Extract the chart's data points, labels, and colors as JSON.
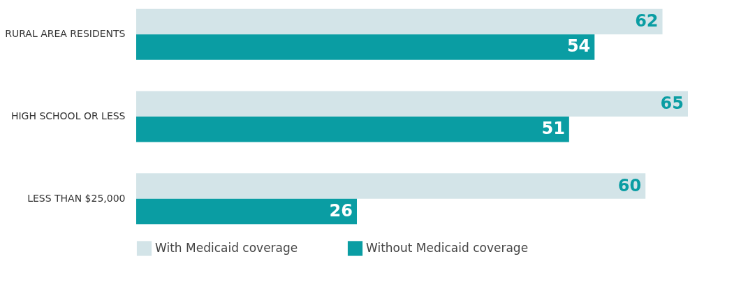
{
  "chart_data": {
    "type": "bar",
    "orientation": "horizontal",
    "categories": [
      "RURAL AREA RESIDENTS",
      "HIGH SCHOOL OR LESS",
      "LESS THAN $25,000"
    ],
    "series": [
      {
        "name": "With Medicaid coverage",
        "color": "#d3e4e8",
        "values": [
          62,
          65,
          60
        ]
      },
      {
        "name": "Without Medicaid coverage",
        "color": "#0a9da3",
        "values": [
          54,
          51,
          26
        ]
      }
    ],
    "data_labels": true,
    "legend": "bottom",
    "grid": false
  }
}
